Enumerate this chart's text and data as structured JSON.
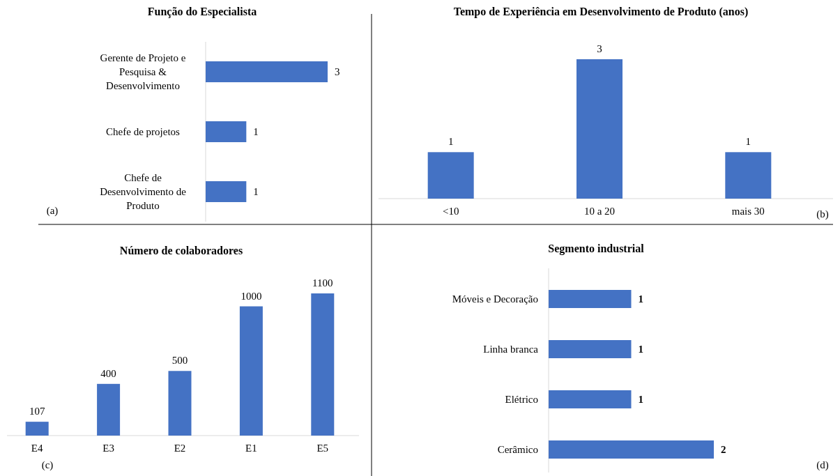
{
  "chart_data": [
    {
      "type": "bar",
      "orientation": "horizontal",
      "title": "Função  do Especialista",
      "categories": [
        "Gerente de Projeto e Pesquisa & Desenvolvimento",
        "Chefe de projetos",
        "Chefe de Desenvolvimento de Produto"
      ],
      "values": [
        3,
        1,
        1
      ],
      "color": "#4472c4",
      "data_labels": true,
      "annotations": [
        "(a)"
      ]
    },
    {
      "type": "bar",
      "title": "Tempo de Experiência em Desenvolvimento de Produto (anos)",
      "categories": [
        "<10",
        "10 a 20",
        "mais 30"
      ],
      "values": [
        1,
        3,
        1
      ],
      "color": "#4472c4",
      "data_labels": true,
      "annotations": [
        "(b)"
      ]
    },
    {
      "type": "bar",
      "title": "Número de colaboradores",
      "categories": [
        "E4",
        "E3",
        "E2",
        "E1",
        "E5"
      ],
      "values": [
        107,
        400,
        500,
        1000,
        1100
      ],
      "color": "#4472c4",
      "data_labels": true,
      "annotations": [
        "(c)"
      ]
    },
    {
      "type": "bar",
      "orientation": "horizontal",
      "title": "Segmento industrial",
      "categories": [
        "Móveis e Decoração",
        "Linha branca",
        "Elétrico",
        "Cerâmico"
      ],
      "values": [
        1,
        1,
        1,
        2
      ],
      "color": "#4472c4",
      "data_labels": true,
      "annotations": [
        "(d)"
      ]
    }
  ]
}
